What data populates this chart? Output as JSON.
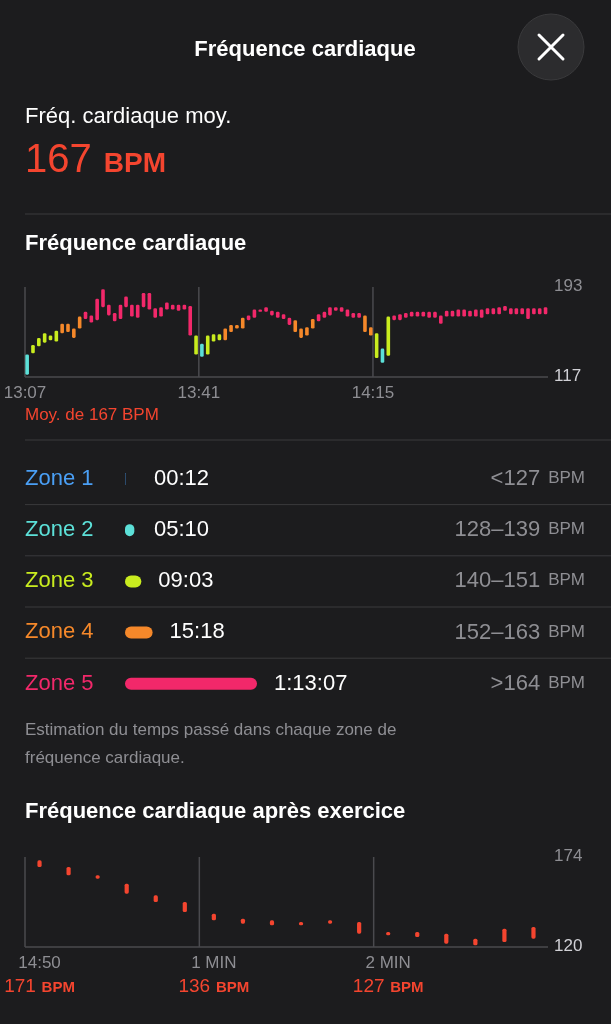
{
  "chart_data": [
    {
      "type": "other",
      "title": "Fréquence cardiaque",
      "annotations": [
        "Fréq. cardiaque moy.",
        "167 BPM"
      ]
    },
    {
      "type": "bar",
      "title": "Fréquence cardiaque",
      "x": [
        13.124,
        13.143,
        13.162,
        13.181,
        13.2,
        13.219,
        13.238,
        13.257,
        13.276,
        13.295,
        13.314,
        13.333,
        13.352,
        13.371,
        13.39,
        13.409,
        13.428,
        13.446,
        13.465,
        13.484,
        13.503,
        13.522,
        13.541,
        13.56,
        13.579,
        13.598,
        13.617,
        13.636,
        13.655,
        13.674,
        13.693,
        13.712,
        13.731,
        13.75,
        13.769,
        13.788,
        13.807,
        13.826,
        13.845,
        13.864,
        13.883,
        13.902,
        13.921,
        13.94,
        13.959,
        13.978,
        13.997,
        14.016,
        14.035,
        14.054,
        14.073,
        14.092,
        14.11,
        14.129,
        14.148,
        14.167,
        14.186,
        14.205,
        14.224,
        14.243,
        14.262,
        14.281,
        14.3,
        14.319,
        14.338,
        14.357,
        14.376,
        14.395,
        14.414,
        14.433,
        14.452,
        14.471,
        14.49,
        14.509,
        14.528,
        14.547,
        14.566,
        14.585,
        14.604,
        14.623,
        14.642,
        14.661,
        14.68,
        14.699,
        14.717,
        14.736,
        14.755,
        14.774,
        14.793,
        14.812
      ],
      "base": [
        119,
        137,
        143,
        146,
        148,
        147,
        154,
        155,
        150,
        158,
        166,
        163,
        165,
        176,
        169,
        164,
        166,
        176,
        168,
        167,
        176,
        174,
        167,
        168,
        174,
        174,
        173,
        174,
        152,
        136,
        134,
        136,
        147,
        148,
        148,
        155,
        158,
        158,
        165,
        167,
        172,
        172,
        169,
        167,
        166,
        161,
        155,
        150,
        152,
        158,
        164,
        167,
        169,
        173,
        172,
        168,
        167,
        167,
        155,
        152,
        133,
        129,
        135,
        165,
        165,
        167,
        168,
        168,
        168,
        167,
        167,
        162,
        168,
        168,
        168,
        168,
        168,
        168,
        167,
        170,
        170,
        170,
        173,
        170,
        170,
        170,
        166,
        170,
        170,
        170
      ],
      "values": [
        17,
        7,
        7,
        8,
        4,
        9,
        8,
        7,
        8,
        10,
        6,
        6,
        18,
        15,
        9,
        7,
        12,
        9,
        10,
        11,
        12,
        14,
        8,
        8,
        6,
        4,
        5,
        4,
        25,
        16,
        11,
        16,
        6,
        5,
        10,
        6,
        3,
        9,
        4,
        7,
        2,
        4,
        4,
        5,
        4,
        6,
        10,
        8,
        7,
        8,
        6,
        5,
        7,
        3,
        4,
        6,
        4,
        4,
        14,
        7,
        21,
        12,
        33,
        4,
        5,
        4,
        4,
        4,
        4,
        5,
        5,
        7,
        5,
        5,
        6,
        6,
        5,
        6,
        7,
        5,
        5,
        6,
        4,
        5,
        5,
        5,
        9,
        5,
        5,
        6
      ],
      "colors": [
        "#5ce0d8",
        "#c9ec1f",
        "#c9ec1f",
        "#c9ec1f",
        "#c9ec1f",
        "#c9ec1f",
        "#f5882a",
        "#f5882a",
        "#f5882a",
        "#f5882a",
        "#f2286a",
        "#f2286a",
        "#f2286a",
        "#f2286a",
        "#f2286a",
        "#f2286a",
        "#f2286a",
        "#f2286a",
        "#f2286a",
        "#f2286a",
        "#f2286a",
        "#f2286a",
        "#f2286a",
        "#f2286a",
        "#f2286a",
        "#f2286a",
        "#f2286a",
        "#f2286a",
        "#f2286a",
        "#c9ec1f",
        "#5ce0d8",
        "#c9ec1f",
        "#c9ec1f",
        "#c9ec1f",
        "#f5882a",
        "#f5882a",
        "#f5882a",
        "#f5882a",
        "#f2286a",
        "#f2286a",
        "#f2286a",
        "#f2286a",
        "#f2286a",
        "#f2286a",
        "#f2286a",
        "#f2286a",
        "#f5882a",
        "#f5882a",
        "#f5882a",
        "#f5882a",
        "#f2286a",
        "#f2286a",
        "#f2286a",
        "#f2286a",
        "#f2286a",
        "#f2286a",
        "#f2286a",
        "#f2286a",
        "#f5882a",
        "#f5882a",
        "#c9ec1f",
        "#5ce0d8",
        "#c9ec1f",
        "#f2286a",
        "#f2286a",
        "#f2286a",
        "#f2286a",
        "#f2286a",
        "#f2286a",
        "#f2286a",
        "#f2286a",
        "#f2286a",
        "#f2286a",
        "#f2286a",
        "#f2286a",
        "#f2286a",
        "#f2286a",
        "#f2286a",
        "#f2286a",
        "#f2286a",
        "#f2286a",
        "#f2286a",
        "#f2286a",
        "#f2286a",
        "#f2286a",
        "#f2286a",
        "#f2286a",
        "#f2286a",
        "#f2286a",
        "#f2286a"
      ],
      "xlim": [
        13.117,
        14.82
      ],
      "xticks": [
        {
          "value": 13.117,
          "label": "13:07"
        },
        {
          "value": 13.683,
          "label": "13:41"
        },
        {
          "value": 14.25,
          "label": "14:15"
        }
      ],
      "ylim": [
        117,
        193
      ],
      "yticks": [
        117,
        193
      ],
      "grid": "x",
      "annotations": [
        "Moy. de 167 BPM"
      ]
    },
    {
      "type": "bar",
      "orientation": "horizontal",
      "categories": [
        "Zone 1",
        "Zone 2",
        "Zone 3",
        "Zone 4",
        "Zone 5"
      ],
      "values": [
        12,
        310,
        543,
        918,
        4387
      ],
      "value_labels": [
        "00:12",
        "05:10",
        "09:03",
        "15:18",
        "1:13:07"
      ],
      "colors": [
        "#4a9ff5",
        "#5ce0d8",
        "#c9ec1f",
        "#f5882a",
        "#f2286a"
      ],
      "annotations": [
        "<127 BPM",
        "128–139 BPM",
        "140–151 BPM",
        "152–163 BPM",
        ">164 BPM",
        "Estimation du temps passé dans chaque zone de fréquence cardiaque."
      ]
    },
    {
      "type": "bar",
      "title": "Fréquence cardiaque après exercice",
      "categories": [
        "14:50",
        null,
        null,
        null,
        null,
        null,
        "1 MIN",
        null,
        null,
        null,
        null,
        null,
        "2 MIN",
        null,
        null,
        null,
        null,
        null
      ],
      "base": [
        168,
        163,
        161,
        152,
        147,
        141,
        136,
        134,
        133,
        133,
        134,
        128,
        127,
        126,
        122,
        121,
        123,
        125
      ],
      "values": [
        4,
        5,
        2,
        6,
        4,
        6,
        4,
        3,
        3,
        2,
        2,
        7,
        2,
        3,
        6,
        4,
        8,
        7
      ],
      "color": "#f4452f",
      "ylim": [
        120,
        174
      ],
      "yticks": [
        120,
        174
      ],
      "grid": "x",
      "annotations": [
        "171 BPM",
        "136 BPM",
        "127 BPM"
      ]
    }
  ]
}
